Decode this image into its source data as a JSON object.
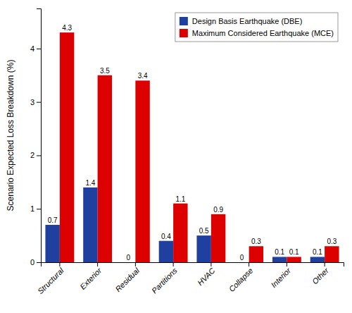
{
  "chart_data": {
    "type": "bar",
    "categories": [
      "Structural",
      "Exterior",
      "Residual",
      "Partitions",
      "HVAC",
      "Collapse",
      "Interior",
      "Other"
    ],
    "series": [
      {
        "name": "Design Basis Earthquake (DBE)",
        "color": "#2040a0",
        "values": [
          0.7,
          1.4,
          0,
          0.4,
          0.5,
          0,
          0.1,
          0.1
        ]
      },
      {
        "name": "Maximum Considered Earthquake (MCE)",
        "color": "#dd0000",
        "values": [
          4.3,
          3.5,
          3.4,
          1.1,
          0.9,
          0.3,
          0.1,
          0.3
        ]
      }
    ],
    "ylabel": "Scenario Expected Loss Breakdown (%)",
    "ylim": [
      0,
      4.75
    ],
    "yticks": [
      0,
      1,
      2,
      3,
      4
    ],
    "data_labels": true,
    "legend": "top-right",
    "grid": false
  }
}
